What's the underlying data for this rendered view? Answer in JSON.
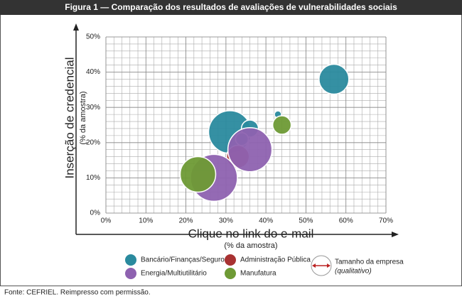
{
  "chart_data": {
    "type": "bubble",
    "title": "Figura 1 — Comparação dos resultados de avaliações de vulnerabilidades sociais",
    "x_label": "Clique no link do e-mail",
    "x_sublabel": "(% da amostra)",
    "y_label": "Inserção de credencial",
    "y_sublabel": "(% da amostra)",
    "xlim": [
      0,
      70
    ],
    "xticks": [
      {
        "value": 0,
        "label": "0%"
      },
      {
        "value": 10,
        "label": "10%"
      },
      {
        "value": 20,
        "label": "20%"
      },
      {
        "value": 30,
        "label": "30%"
      },
      {
        "value": 40,
        "label": "40%"
      },
      {
        "value": 50,
        "label": "50%"
      },
      {
        "value": 60,
        "label": "60%"
      },
      {
        "value": 70,
        "label": "70%"
      }
    ],
    "ylim": [
      0,
      50
    ],
    "yticks": [
      {
        "value": 0,
        "label": "0%"
      },
      {
        "value": 10,
        "label": "10%"
      },
      {
        "value": 20,
        "label": "20%"
      },
      {
        "value": 30,
        "label": "30%"
      },
      {
        "value": 40,
        "label": "40%"
      },
      {
        "value": 50,
        "label": "50%"
      }
    ],
    "grid": true,
    "grid_minor_step": 2,
    "series": [
      {
        "name": "Bancário/Finanças/Seguros",
        "color": "#2a8a9e",
        "x": [
          57,
          31,
          36,
          34,
          43
        ],
        "values": [
          38,
          23,
          24,
          21,
          28
        ],
        "sizes": [
          21,
          30,
          12,
          9,
          5
        ]
      },
      {
        "name": "Administração Pública",
        "color": "#a83232",
        "x": [
          33
        ],
        "values": [
          16
        ],
        "sizes": [
          16
        ]
      },
      {
        "name": "Energia/Multiutilitário",
        "color": "#8e62b0",
        "x": [
          27,
          36
        ],
        "values": [
          10,
          18
        ],
        "sizes": [
          33,
          31
        ]
      },
      {
        "name": "Manufatura",
        "color": "#6e9a35",
        "x": [
          23,
          44
        ],
        "values": [
          11,
          25
        ],
        "sizes": [
          25,
          13
        ]
      }
    ],
    "size_legend": {
      "label": "Tamanho da empresa",
      "note": "(qualitativo)"
    },
    "source": "Fonte:  CEFRIEL. Reimpresso com permissão."
  }
}
